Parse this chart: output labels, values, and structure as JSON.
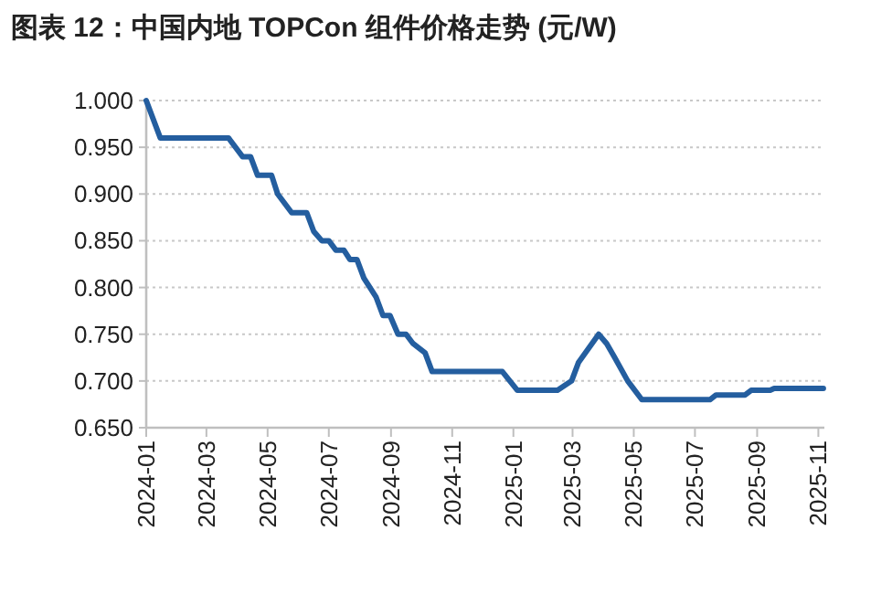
{
  "chart_data": {
    "type": "line",
    "title": "图表 12：中国内地 TOPCon 组件价格走势 (元/W)",
    "x": [
      "2024-01-01",
      "2024-01-15",
      "2024-03-23",
      "2024-04-06",
      "2024-04-14",
      "2024-04-21",
      "2024-05-05",
      "2024-05-11",
      "2024-05-25",
      "2024-06-09",
      "2024-06-16",
      "2024-06-24",
      "2024-07-01",
      "2024-07-08",
      "2024-07-16",
      "2024-07-22",
      "2024-07-29",
      "2024-08-05",
      "2024-08-11",
      "2024-08-17",
      "2024-08-24",
      "2024-08-31",
      "2024-09-08",
      "2024-09-16",
      "2024-09-23",
      "2024-10-05",
      "2024-10-12",
      "2024-12-21",
      "2025-01-05",
      "2025-02-14",
      "2025-02-28",
      "2025-03-07",
      "2025-03-27",
      "2025-04-04",
      "2025-04-12",
      "2025-04-25",
      "2025-05-09",
      "2025-07-16",
      "2025-07-22",
      "2025-08-20",
      "2025-08-26",
      "2025-09-14",
      "2025-09-18",
      "2025-11-06"
    ],
    "series": [
      {
        "color": "#245e9f",
        "values": [
          1.0,
          0.96,
          0.96,
          0.94,
          0.94,
          0.92,
          0.92,
          0.9,
          0.88,
          0.88,
          0.86,
          0.85,
          0.85,
          0.84,
          0.84,
          0.83,
          0.83,
          0.81,
          0.8,
          0.79,
          0.77,
          0.77,
          0.75,
          0.75,
          0.74,
          0.73,
          0.71,
          0.71,
          0.69,
          0.69,
          0.7,
          0.72,
          0.75,
          0.74,
          0.725,
          0.7,
          0.68,
          0.68,
          0.685,
          0.685,
          0.69,
          0.69,
          0.692,
          0.692
        ]
      }
    ],
    "xlim": [
      "2024-01-01",
      "2025-11-07"
    ],
    "xticks": [
      "2024-01",
      "2024-03",
      "2024-05",
      "2024-07",
      "2024-09",
      "2024-11",
      "2025-01",
      "2025-03",
      "2025-05",
      "2025-07",
      "2025-09",
      "2025-11"
    ],
    "ylim": [
      0.65,
      1.0
    ],
    "yticks": [
      {
        "value": 0.65,
        "label": "0.650"
      },
      {
        "value": 0.7,
        "label": "0.700"
      },
      {
        "value": 0.75,
        "label": "0.750"
      },
      {
        "value": 0.8,
        "label": "0.800"
      },
      {
        "value": 0.85,
        "label": "0.850"
      },
      {
        "value": 0.9,
        "label": "0.900"
      },
      {
        "value": 0.95,
        "label": "0.950"
      },
      {
        "value": 1.0,
        "label": "1.000"
      }
    ],
    "grid": "y",
    "marker": "none",
    "line_style": "solid"
  }
}
